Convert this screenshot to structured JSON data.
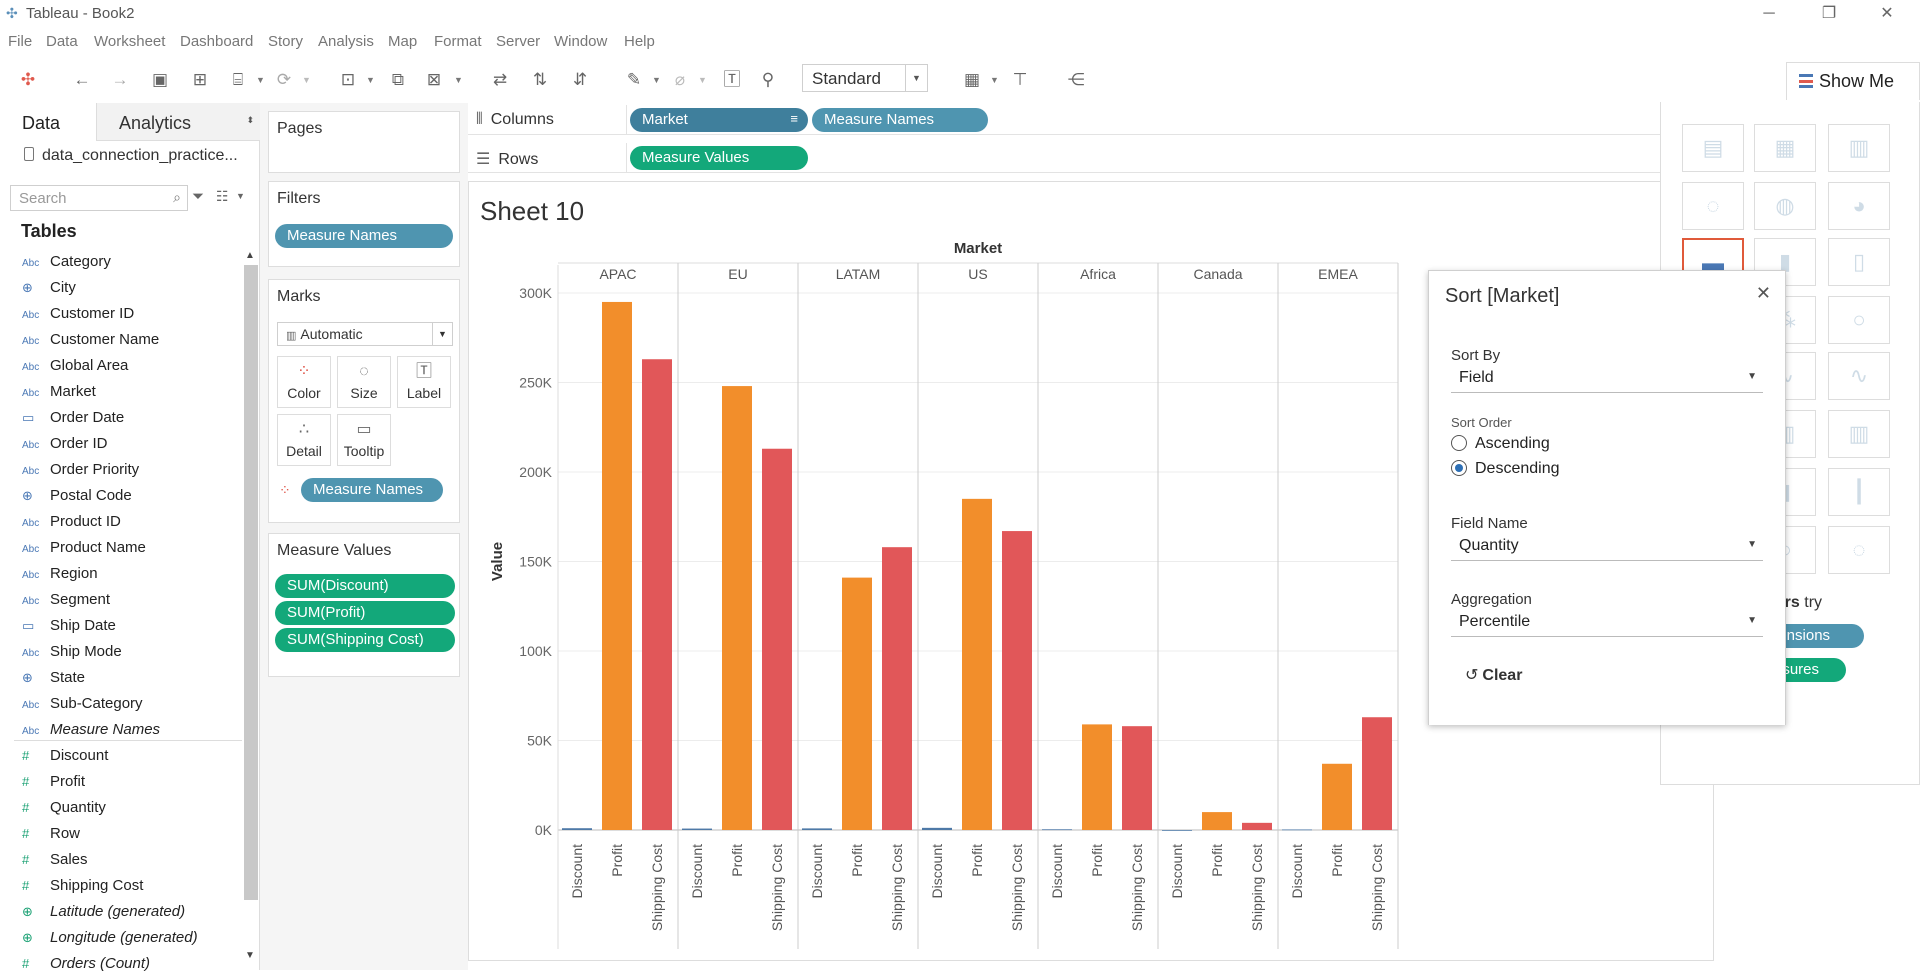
{
  "window": {
    "title": "Tableau - Book2",
    "minimize": "─",
    "restore": "❐",
    "close": "✕"
  },
  "menu": [
    "File",
    "Data",
    "Worksheet",
    "Dashboard",
    "Story",
    "Analysis",
    "Map",
    "Format",
    "Server",
    "Window",
    "Help"
  ],
  "toolbar": {
    "fit": "Standard",
    "show_me": "Show Me"
  },
  "left": {
    "tab_data": "Data",
    "tab_analytics": "Analytics",
    "connection": "data_connection_practice...",
    "search_placeholder": "Search",
    "tables_header": "Tables",
    "fields": [
      {
        "icon": "Abc",
        "name": "Category",
        "kind": "dim"
      },
      {
        "icon": "⊕",
        "name": "City",
        "kind": "geo"
      },
      {
        "icon": "Abc",
        "name": "Customer ID",
        "kind": "dim"
      },
      {
        "icon": "Abc",
        "name": "Customer Name",
        "kind": "dim"
      },
      {
        "icon": "Abc",
        "name": "Global Area",
        "kind": "dim"
      },
      {
        "icon": "Abc",
        "name": "Market",
        "kind": "dim"
      },
      {
        "icon": "▭",
        "name": "Order Date",
        "kind": "date"
      },
      {
        "icon": "Abc",
        "name": "Order ID",
        "kind": "dim"
      },
      {
        "icon": "Abc",
        "name": "Order Priority",
        "kind": "dim"
      },
      {
        "icon": "⊕",
        "name": "Postal Code",
        "kind": "geo"
      },
      {
        "icon": "Abc",
        "name": "Product ID",
        "kind": "dim"
      },
      {
        "icon": "Abc",
        "name": "Product Name",
        "kind": "dim"
      },
      {
        "icon": "Abc",
        "name": "Region",
        "kind": "dim"
      },
      {
        "icon": "Abc",
        "name": "Segment",
        "kind": "dim"
      },
      {
        "icon": "▭",
        "name": "Ship Date",
        "kind": "date"
      },
      {
        "icon": "Abc",
        "name": "Ship Mode",
        "kind": "dim"
      },
      {
        "icon": "⊕",
        "name": "State",
        "kind": "geo"
      },
      {
        "icon": "Abc",
        "name": "Sub-Category",
        "kind": "dim"
      },
      {
        "icon": "Abc",
        "name": "Measure Names",
        "kind": "dim-italic"
      },
      {
        "icon": "#",
        "name": "Discount",
        "kind": "measure"
      },
      {
        "icon": "#",
        "name": "Profit",
        "kind": "measure"
      },
      {
        "icon": "#",
        "name": "Quantity",
        "kind": "measure"
      },
      {
        "icon": "#",
        "name": "Row",
        "kind": "measure"
      },
      {
        "icon": "#",
        "name": "Sales",
        "kind": "measure"
      },
      {
        "icon": "#",
        "name": "Shipping Cost",
        "kind": "measure"
      },
      {
        "icon": "⊕",
        "name": "Latitude (generated)",
        "kind": "geo-measure-italic"
      },
      {
        "icon": "⊕",
        "name": "Longitude (generated)",
        "kind": "geo-measure-italic"
      },
      {
        "icon": "#",
        "name": "Orders (Count)",
        "kind": "measure-italic"
      }
    ]
  },
  "cards": {
    "pages": "Pages",
    "filters": "Filters",
    "filter_pill": "Measure Names",
    "marks": "Marks",
    "mark_type": "Automatic",
    "mark_buttons": [
      "Color",
      "Size",
      "Label",
      "Detail",
      "Tooltip"
    ],
    "marks_pill": "Measure Names",
    "measure_values": "Measure Values",
    "mv_pills": [
      "SUM(Discount)",
      "SUM(Profit)",
      "SUM(Shipping Cost)"
    ]
  },
  "shelves": {
    "columns_label": "Columns",
    "rows_label": "Rows",
    "col_pill_1": "Market",
    "col_pill_2": "Measure Names",
    "row_pill": "Measure Values"
  },
  "sheet": {
    "title": "Sheet 10"
  },
  "chart_data": {
    "type": "bar",
    "header": "Market",
    "ylabel": "Value",
    "ylim": [
      0,
      300000
    ],
    "yticks": [
      "0K",
      "50K",
      "100K",
      "150K",
      "200K",
      "250K",
      "300K"
    ],
    "categories": [
      "APAC",
      "EU",
      "LATAM",
      "US",
      "Africa",
      "Canada",
      "EMEA"
    ],
    "measures": [
      "Discount",
      "Profit",
      "Shipping Cost"
    ],
    "colors": {
      "Discount": "#4e79a7",
      "Profit": "#f28e2b",
      "Shipping Cost": "#e15759"
    },
    "series": [
      {
        "name": "Discount",
        "values": [
          1000,
          800,
          900,
          1200,
          400,
          0,
          300
        ]
      },
      {
        "name": "Profit",
        "values": [
          295000,
          248000,
          141000,
          185000,
          59000,
          10000,
          37000
        ]
      },
      {
        "name": "Shipping Cost",
        "values": [
          263000,
          213000,
          158000,
          167000,
          58000,
          4000,
          63000
        ]
      }
    ]
  },
  "show_me": {
    "hint_bold": "bars",
    "hint_rest": " try",
    "pill_dims": "nensions",
    "pill_meas": "asures"
  },
  "sort_dialog": {
    "title": "Sort [Market]",
    "close": "✕",
    "sort_by_label": "Sort By",
    "sort_by_value": "Field",
    "sort_order_label": "Sort Order",
    "ascending": "Ascending",
    "descending": "Descending",
    "selected_order": "Descending",
    "field_name_label": "Field Name",
    "field_name_value": "Quantity",
    "aggregation_label": "Aggregation",
    "aggregation_value": "Percentile",
    "clear": "Clear"
  }
}
